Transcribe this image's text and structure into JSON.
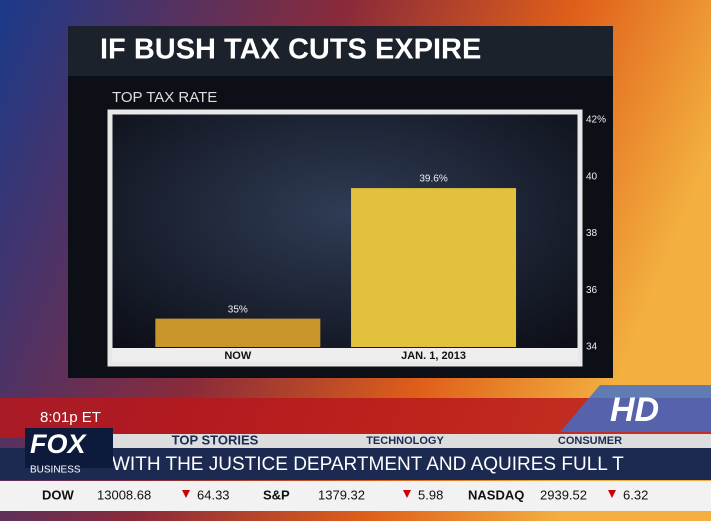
{
  "chart_data": {
    "type": "bar",
    "title": "IF BUSH TAX CUTS EXPIRE",
    "subtitle": "TOP TAX RATE",
    "categories": [
      "NOW",
      "JAN. 1, 2013"
    ],
    "values": [
      35,
      39.6
    ],
    "value_labels": [
      "35%",
      "39.6%"
    ],
    "colors": [
      "#c9962c",
      "#e2c23c"
    ],
    "ylim": [
      34,
      42
    ],
    "yticks": [
      34,
      36,
      38,
      40,
      {
        "value": 42,
        "label": "42%"
      }
    ],
    "grid": false
  },
  "broadcast": {
    "time": "8:01p ET",
    "logo": "FOX",
    "logo_sub": "BUSINESS",
    "hd_badge": "HD",
    "tabs": [
      "TOP STORIES",
      "TECHNOLOGY",
      "CONSUMER"
    ],
    "crawl": "WITH THE JUSTICE DEPARTMENT AND AQUIRES FULL T",
    "tickers": [
      {
        "name": "DOW",
        "price": "13008.68",
        "change": "64.33"
      },
      {
        "name": "S&P",
        "price": "1379.32",
        "change": "5.98"
      },
      {
        "name": "NASDAQ",
        "price": "2939.52",
        "change": "6.32"
      }
    ]
  }
}
